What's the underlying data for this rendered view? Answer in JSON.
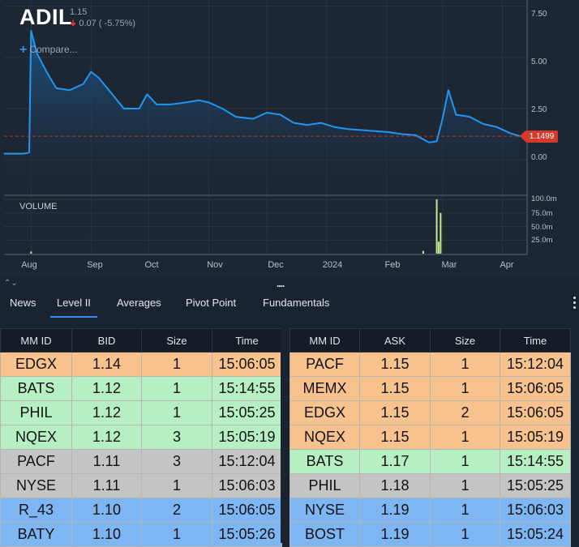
{
  "header": {
    "symbol": "ADIL",
    "last_price": "1.15",
    "change_arrow": "down-arrow-icon",
    "change_text": "0.07 ( -5.75%)",
    "compare_label": "Compare..."
  },
  "chart": {
    "volume_label": "VOLUME",
    "price_badge": "1.1499",
    "y_ticks": [
      "7.50",
      "5.00",
      "2.50",
      "0.00"
    ],
    "volume_ticks": [
      "100.0m",
      "75.0m",
      "50.0m",
      "25.0m"
    ],
    "x_ticks": [
      "Aug",
      "Sep",
      "Oct",
      "Nov",
      "Dec",
      "2024",
      "Feb",
      "Mar",
      "Apr"
    ],
    "colors": {
      "line": "#2196f3",
      "reference_line": "#d43a2a",
      "volume_bar": "#c5e88a",
      "background": "#1d2633"
    }
  },
  "chart_data": {
    "type": "line",
    "series": [
      {
        "name": "",
        "values": [
          [
            "2023-07-18",
            0.3
          ],
          [
            "2023-07-28",
            0.3
          ],
          [
            "2023-07-31",
            0.35
          ],
          [
            "2023-08-01",
            6.3
          ],
          [
            "2023-08-04",
            5.2
          ],
          [
            "2023-08-09",
            4.3
          ],
          [
            "2023-08-14",
            3.5
          ],
          [
            "2023-08-21",
            3.4
          ],
          [
            "2023-08-28",
            3.7
          ],
          [
            "2023-09-01",
            4.3
          ],
          [
            "2023-09-05",
            4.0
          ],
          [
            "2023-09-12",
            3.2
          ],
          [
            "2023-09-18",
            2.5
          ],
          [
            "2023-09-26",
            2.5
          ],
          [
            "2023-09-30",
            3.2
          ],
          [
            "2023-10-05",
            2.7
          ],
          [
            "2023-10-12",
            2.7
          ],
          [
            "2023-10-20",
            2.8
          ],
          [
            "2023-10-27",
            2.9
          ],
          [
            "2023-11-01",
            2.8
          ],
          [
            "2023-11-08",
            2.5
          ],
          [
            "2023-11-15",
            2.1
          ],
          [
            "2023-11-24",
            2.0
          ],
          [
            "2023-12-01",
            2.3
          ],
          [
            "2023-12-08",
            2.2
          ],
          [
            "2023-12-15",
            1.8
          ],
          [
            "2023-12-22",
            1.7
          ],
          [
            "2023-12-29",
            1.8
          ],
          [
            "2024-01-05",
            1.6
          ],
          [
            "2024-01-12",
            1.5
          ],
          [
            "2024-01-19",
            1.45
          ],
          [
            "2024-01-26",
            1.4
          ],
          [
            "2024-02-02",
            1.35
          ],
          [
            "2024-02-09",
            1.25
          ],
          [
            "2024-02-16",
            1.2
          ],
          [
            "2024-02-23",
            0.85
          ],
          [
            "2024-02-27",
            0.9
          ],
          [
            "2024-03-01",
            2.0
          ],
          [
            "2024-03-04",
            3.4
          ],
          [
            "2024-03-08",
            2.2
          ],
          [
            "2024-03-15",
            2.1
          ],
          [
            "2024-03-22",
            1.75
          ],
          [
            "2024-03-29",
            1.6
          ],
          [
            "2024-04-05",
            1.3
          ],
          [
            "2024-04-10",
            1.15
          ]
        ]
      }
    ],
    "volume": [
      [
        "2023-08-01",
        4
      ],
      [
        "2024-02-20",
        5
      ],
      [
        "2024-02-27",
        100
      ],
      [
        "2024-02-28",
        22
      ],
      [
        "2024-02-29",
        75
      ]
    ],
    "reference_line": 1.1499,
    "xlabel": "",
    "ylabel": "",
    "ylim": [
      -1.3,
      7.8
    ],
    "volume_ylim": [
      0,
      100
    ],
    "grid": true
  },
  "panel": {
    "collapse_icon": "chevron-up-down-icon",
    "drag_handle": "....",
    "tabs": [
      {
        "label": "News",
        "active": false
      },
      {
        "label": "Level II",
        "active": true
      },
      {
        "label": "Averages",
        "active": false
      },
      {
        "label": "Pivot Point",
        "active": false
      },
      {
        "label": "Fundamentals",
        "active": false
      }
    ]
  },
  "level2": {
    "bid_headers": [
      "MM ID",
      "BID",
      "Size",
      "Time"
    ],
    "ask_headers": [
      "MM ID",
      "ASK",
      "Size",
      "Time"
    ],
    "bids": [
      {
        "mm": "EDGX",
        "price": "1.14",
        "size": "1",
        "time": "15:06:05",
        "color": "#f7c28e"
      },
      {
        "mm": "BATS",
        "price": "1.12",
        "size": "1",
        "time": "15:14:55",
        "color": "#b6efc2"
      },
      {
        "mm": "PHIL",
        "price": "1.12",
        "size": "1",
        "time": "15:05:25",
        "color": "#b6efc2"
      },
      {
        "mm": "NQEX",
        "price": "1.12",
        "size": "3",
        "time": "15:05:19",
        "color": "#b6efc2"
      },
      {
        "mm": "PACF",
        "price": "1.11",
        "size": "3",
        "time": "15:12:04",
        "color": "#c4c4c4"
      },
      {
        "mm": "NYSE",
        "price": "1.11",
        "size": "1",
        "time": "15:06:03",
        "color": "#c4c4c4"
      },
      {
        "mm": "R_43",
        "price": "1.10",
        "size": "2",
        "time": "15:06:05",
        "color": "#7db6f2"
      },
      {
        "mm": "BATY",
        "price": "1.10",
        "size": "1",
        "time": "15:05:26",
        "color": "#7db6f2"
      }
    ],
    "asks": [
      {
        "mm": "PACF",
        "price": "1.15",
        "size": "1",
        "time": "15:12:04",
        "color": "#f7c28e"
      },
      {
        "mm": "MEMX",
        "price": "1.15",
        "size": "1",
        "time": "15:06:05",
        "color": "#f7c28e"
      },
      {
        "mm": "EDGX",
        "price": "1.15",
        "size": "2",
        "time": "15:06:05",
        "color": "#f7c28e"
      },
      {
        "mm": "NQEX",
        "price": "1.15",
        "size": "1",
        "time": "15:05:19",
        "color": "#f7c28e"
      },
      {
        "mm": "BATS",
        "price": "1.17",
        "size": "1",
        "time": "15:14:55",
        "color": "#b6efc2"
      },
      {
        "mm": "PHIL",
        "price": "1.18",
        "size": "1",
        "time": "15:05:25",
        "color": "#c4c4c4"
      },
      {
        "mm": "NYSE",
        "price": "1.19",
        "size": "1",
        "time": "15:06:03",
        "color": "#7db6f2"
      },
      {
        "mm": "BOST",
        "price": "1.19",
        "size": "1",
        "time": "15:05:24",
        "color": "#7db6f2"
      }
    ]
  }
}
